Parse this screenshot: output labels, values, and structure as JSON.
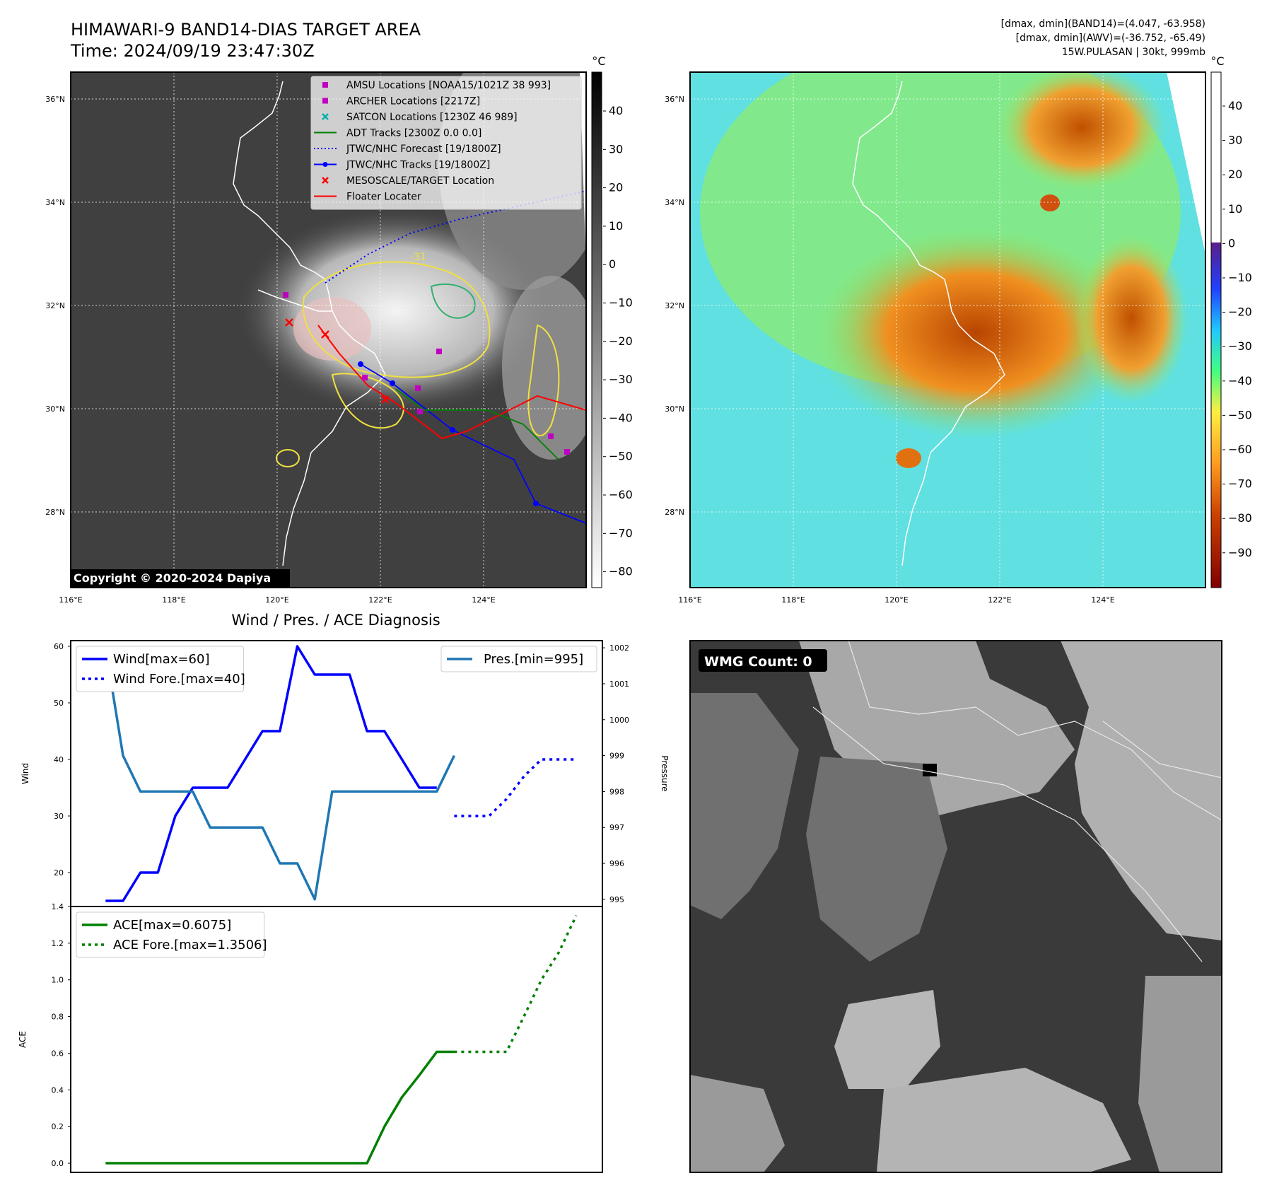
{
  "header": {
    "title_line1": "HIMAWARI-9 BAND14-DIAS TARGET AREA",
    "title_line2": "Time: 2024/09/19 23:47:30Z",
    "info_line1": "[dmax, dmin](BAND14)=(4.047, -63.958)",
    "info_line2": "[dmax, dmin](AWV)=(-36.752, -65.49)",
    "info_line3": "15W.PULASAN | 30kt, 999mb"
  },
  "map_axes": {
    "lat_labels": [
      "36°N",
      "34°N",
      "32°N",
      "30°N",
      "28°N"
    ],
    "lon_labels": [
      "116°E",
      "118°E",
      "120°E",
      "122°E",
      "124°E"
    ]
  },
  "colorbar_ir": {
    "unit": "°C",
    "ticks": [
      "40",
      "30",
      "20",
      "10",
      "0",
      "−10",
      "−20",
      "−30",
      "−40",
      "−50",
      "−60",
      "−70",
      "−80"
    ]
  },
  "colorbar_color": {
    "unit": "°C",
    "ticks": [
      "40",
      "30",
      "20",
      "10",
      "0",
      "−10",
      "−20",
      "−30",
      "−40",
      "−50",
      "−60",
      "−70",
      "−80",
      "−90"
    ]
  },
  "legend_map": [
    {
      "label": "AMSU Locations [NOAA15/1021Z 38 993]",
      "color": "#c000c0",
      "kind": "square"
    },
    {
      "label": "ARCHER Locations [2217Z]",
      "color": "#c000c0",
      "kind": "square"
    },
    {
      "label": "SATCON Locations [1230Z 46 989]",
      "color": "#00b0b0",
      "kind": "x"
    },
    {
      "label": "ADT Tracks [2300Z 0.0 0.0]",
      "color": "#008000",
      "kind": "line"
    },
    {
      "label": "JTWC/NHC Forecast [19/1800Z]",
      "color": "#0000ff",
      "kind": "dotted"
    },
    {
      "label": "JTWC/NHC Tracks [19/1800Z]",
      "color": "#0000ff",
      "kind": "line-dot"
    },
    {
      "label": "MESOSCALE/TARGET Location",
      "color": "#ff0000",
      "kind": "x"
    },
    {
      "label": "Floater Locater",
      "color": "#ff0000",
      "kind": "line"
    }
  ],
  "contour_label": "-31",
  "copyright": "Copyright © 2020-2024 Dapiya",
  "diagnosis_title": "Wind / Pres. / ACE Diagnosis",
  "wmg_label": "WMG Count: 0",
  "chart_data": [
    {
      "type": "line",
      "title": "Wind / Pres. / ACE Diagnosis",
      "ylabel": "Wind",
      "ylim": [
        14,
        61
      ],
      "yticks": [
        "60",
        "50",
        "40",
        "30",
        "20"
      ],
      "x": [
        0,
        1,
        2,
        3,
        4,
        5,
        6,
        7,
        8,
        9,
        10,
        11,
        12,
        13,
        14,
        15,
        16,
        17,
        18,
        19,
        20,
        21,
        22,
        23,
        24,
        25,
        26,
        27
      ],
      "series": [
        {
          "name": "Wind[max=60]",
          "color": "#0000ff",
          "style": "solid",
          "x": [
            0,
            1,
            2,
            3,
            4,
            5,
            6,
            7,
            8,
            9,
            10,
            11,
            12,
            13,
            14,
            15,
            16,
            17,
            18,
            19
          ],
          "values": [
            15,
            15,
            20,
            20,
            30,
            35,
            35,
            35,
            40,
            45,
            45,
            60,
            55,
            55,
            55,
            45,
            45,
            40,
            35,
            35
          ]
        },
        {
          "name": "Wind Fore.[max=40]",
          "color": "#0000ff",
          "style": "dotted",
          "x": [
            20,
            21,
            22,
            23,
            24,
            25,
            26,
            27
          ],
          "values": [
            30,
            30,
            30,
            33,
            37,
            40,
            40,
            40
          ]
        }
      ]
    },
    {
      "type": "line",
      "ylabel": "Pressure",
      "ylim": [
        994.8,
        1002.2
      ],
      "yticks": [
        "1002",
        "1001",
        "1000",
        "999",
        "998",
        "997",
        "996",
        "995"
      ],
      "series": [
        {
          "name": "Pres.[min=995]",
          "color": "#1f77b4",
          "style": "solid",
          "x": [
            0,
            1,
            2,
            3,
            4,
            5,
            6,
            7,
            8,
            9,
            10,
            11,
            12,
            13,
            14,
            15,
            16,
            17,
            18,
            19,
            20
          ],
          "values": [
            1002,
            999,
            998,
            998,
            998,
            998,
            997,
            997,
            997,
            997,
            996,
            996,
            995,
            998,
            998,
            998,
            998,
            998,
            998,
            998,
            999
          ]
        }
      ]
    },
    {
      "type": "line",
      "ylabel": "ACE",
      "ylim": [
        -0.05,
        1.4
      ],
      "yticks": [
        "1.4",
        "1.2",
        "1.0",
        "0.8",
        "0.6",
        "0.4",
        "0.2",
        "0.0"
      ],
      "series": [
        {
          "name": "ACE[max=0.6075]",
          "color": "#008000",
          "style": "solid",
          "x": [
            0,
            1,
            2,
            3,
            4,
            5,
            6,
            7,
            8,
            9,
            10,
            11,
            12,
            13,
            14,
            15,
            16,
            17,
            18,
            19,
            20
          ],
          "values": [
            0,
            0,
            0,
            0,
            0,
            0,
            0,
            0,
            0,
            0,
            0,
            0,
            0,
            0,
            0,
            0,
            0.2,
            0.36,
            0.48,
            0.6075,
            0.6075
          ]
        },
        {
          "name": "ACE Fore.[max=1.3506]",
          "color": "#008000",
          "style": "dotted",
          "x": [
            20,
            21,
            22,
            23,
            24,
            25,
            26,
            27
          ],
          "values": [
            0.6075,
            0.6075,
            0.6075,
            0.6075,
            0.8,
            1.0,
            1.15,
            1.3506
          ]
        }
      ]
    }
  ]
}
